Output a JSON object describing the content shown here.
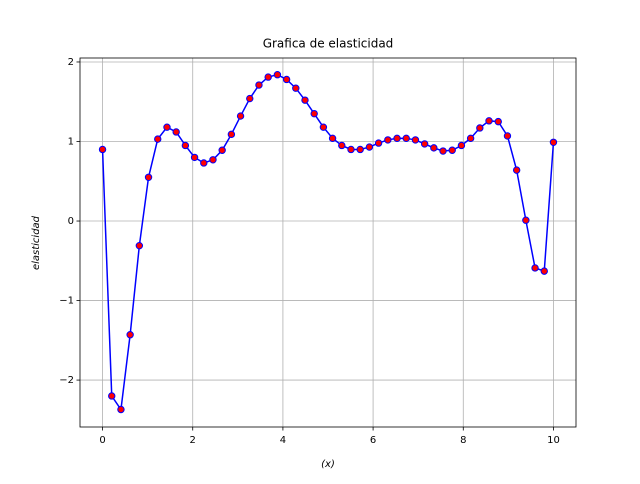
{
  "chart_data": {
    "type": "line",
    "title": "Grafica de elasticidad",
    "x_label": "(x)",
    "y_label": "elasticidad",
    "x": [
      0,
      0.204,
      0.408,
      0.612,
      0.816,
      1.02,
      1.224,
      1.429,
      1.633,
      1.837,
      2.041,
      2.245,
      2.449,
      2.653,
      2.857,
      3.061,
      3.265,
      3.469,
      3.673,
      3.878,
      4.082,
      4.286,
      4.49,
      4.694,
      4.898,
      5.102,
      5.306,
      5.51,
      5.714,
      5.918,
      6.122,
      6.327,
      6.531,
      6.735,
      6.939,
      7.143,
      7.347,
      7.551,
      7.755,
      7.959,
      8.163,
      8.367,
      8.571,
      8.776,
      8.98,
      9.184,
      9.388,
      9.592,
      9.796,
      10
    ],
    "series": [
      {
        "name": "elasticidad",
        "color": "#0000ff",
        "marker_color": "#ff0000",
        "values": [
          0.9,
          -2.2,
          -2.37,
          -1.43,
          -0.31,
          0.55,
          1.03,
          1.18,
          1.12,
          0.95,
          0.8,
          0.73,
          0.77,
          0.89,
          1.09,
          1.32,
          1.54,
          1.71,
          1.81,
          1.84,
          1.78,
          1.67,
          1.52,
          1.35,
          1.18,
          1.04,
          0.95,
          0.9,
          0.9,
          0.93,
          0.98,
          1.02,
          1.04,
          1.04,
          1.02,
          0.97,
          0.92,
          0.88,
          0.89,
          0.95,
          1.04,
          1.17,
          1.26,
          1.25,
          1.07,
          0.64,
          0.01,
          -0.59,
          -0.63,
          0.99
        ]
      }
    ],
    "xlim": [
      -0.5,
      10.5
    ],
    "ylim": [
      -2.59,
      2.05
    ],
    "xticks": [
      0,
      2,
      4,
      6,
      8,
      10
    ],
    "yticks": [
      {
        "value": -2,
        "label": "−2"
      },
      {
        "value": -1,
        "label": "−1"
      },
      0,
      1,
      2
    ],
    "grid": true
  }
}
